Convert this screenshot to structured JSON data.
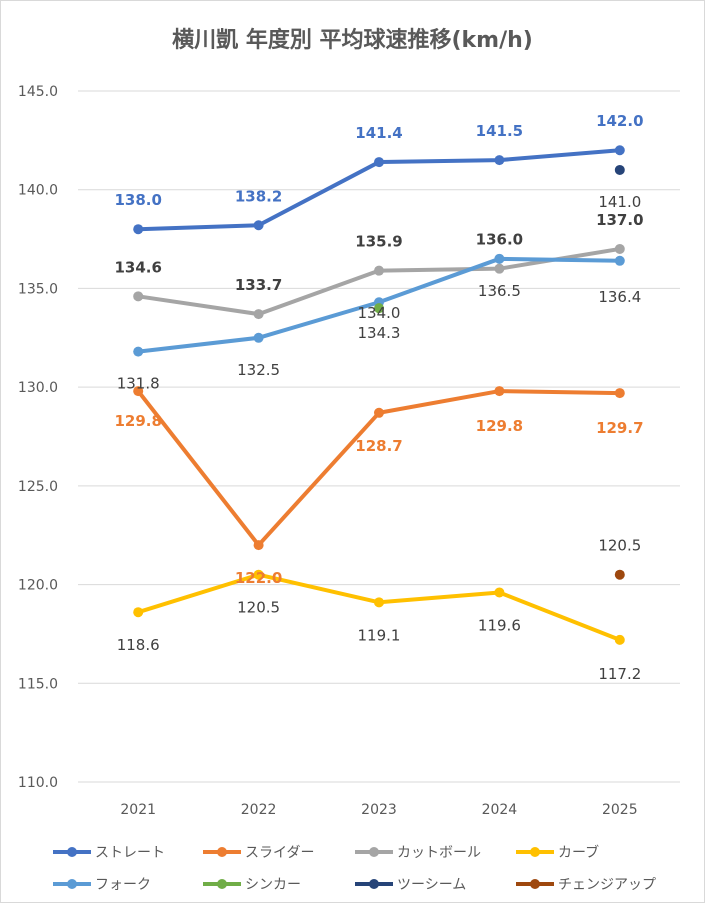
{
  "chart_data": {
    "type": "line",
    "title": "横川凱 年度別 平均球速推移(km/h)",
    "categories": [
      "2021",
      "2022",
      "2023",
      "2024",
      "2025"
    ],
    "ylim": [
      110,
      145
    ],
    "yticks": [
      "110.0",
      "115.0",
      "120.0",
      "125.0",
      "130.0",
      "135.0",
      "140.0",
      "145.0"
    ],
    "grid": true,
    "legend_position": "bottom",
    "series": [
      {
        "name": "ストレート",
        "color": "#4472C4",
        "values": [
          138.0,
          138.2,
          141.4,
          141.5,
          142.0
        ],
        "labels": [
          "138.0",
          "138.2",
          "141.4",
          "141.5",
          "142.0"
        ]
      },
      {
        "name": "スライダー",
        "color": "#ED7D31",
        "values": [
          129.8,
          122.0,
          128.7,
          129.8,
          129.7
        ],
        "labels": [
          "129.8",
          "122.0",
          "128.7",
          "129.8",
          "129.7"
        ]
      },
      {
        "name": "カットボール",
        "color": "#A5A5A5",
        "values": [
          134.6,
          133.7,
          135.9,
          136.0,
          137.0
        ],
        "labels": [
          "134.6",
          "133.7",
          "135.9",
          "136.0",
          "137.0"
        ]
      },
      {
        "name": "カーブ",
        "color": "#FFC000",
        "values": [
          118.6,
          120.5,
          119.1,
          119.6,
          117.2
        ],
        "labels": [
          "118.6",
          "120.5",
          "119.1",
          "119.6",
          "117.2"
        ]
      },
      {
        "name": "フォーク",
        "color": "#5B9BD5",
        "values": [
          131.8,
          132.5,
          134.3,
          136.5,
          136.4
        ],
        "labels": [
          "131.8",
          "132.5",
          "134.3",
          "136.5",
          "136.4"
        ]
      },
      {
        "name": "シンカー",
        "color": "#70AD47",
        "values": [
          null,
          null,
          134.0,
          null,
          null
        ],
        "labels": [
          null,
          null,
          "134.0",
          null,
          null
        ]
      },
      {
        "name": "ツーシーム",
        "color": "#264478",
        "values": [
          null,
          null,
          null,
          null,
          141.0
        ],
        "labels": [
          null,
          null,
          null,
          null,
          "141.0"
        ]
      },
      {
        "name": "チェンジアップ",
        "color": "#9E480E",
        "values": [
          null,
          null,
          null,
          null,
          120.5
        ],
        "labels": [
          null,
          null,
          null,
          null,
          "120.5"
        ]
      }
    ]
  }
}
